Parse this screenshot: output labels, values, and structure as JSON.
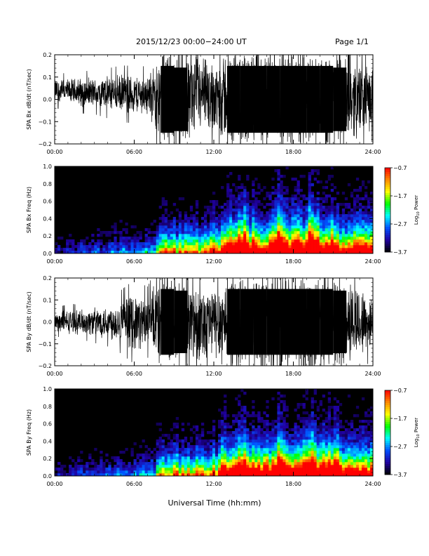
{
  "header": {
    "title": "2015/12/23  00:00−24:00 UT",
    "page": "Page 1/1"
  },
  "xlabel": "Universal Time (hh:mm)",
  "colorbar": {
    "label": "Log10 Power",
    "label_base": "Log",
    "label_sub": "10",
    "label_rest": " Power",
    "ticks": [
      "−0.7",
      "−1.7",
      "−2.7",
      "−3.7"
    ],
    "colors": [
      "#ff0000",
      "#ff8800",
      "#ffff00",
      "#00ff00",
      "#00ffff",
      "#0050ff",
      "#2000a0",
      "#000000"
    ]
  },
  "chart_data": [
    {
      "type": "line",
      "ylabel": "SPA Bx dB/dt (nT/sec)",
      "ylim": [
        -0.2,
        0.2
      ],
      "yticks": [
        "0.2",
        "0.1",
        "0.0",
        "−0.1",
        "−0.2"
      ],
      "xlim": [
        "00:00",
        "24:00"
      ],
      "xticks": [
        "00:00",
        "06:00",
        "12:00",
        "18:00",
        "24:00"
      ],
      "x_hours": [
        0,
        1,
        2,
        3,
        4,
        5,
        6,
        7,
        7.5,
        8,
        9,
        10,
        11,
        12,
        13,
        14,
        15,
        16,
        17,
        18,
        19,
        20,
        21,
        22,
        23,
        24
      ],
      "amplitude": [
        0.05,
        0.05,
        0.06,
        0.06,
        0.07,
        0.08,
        0.08,
        0.08,
        0.12,
        0.2,
        0.2,
        0.18,
        0.16,
        0.15,
        0.2,
        0.2,
        0.2,
        0.2,
        0.2,
        0.2,
        0.2,
        0.2,
        0.2,
        0.18,
        0.15,
        0.12
      ],
      "baseline": 0.04
    },
    {
      "type": "heatmap",
      "ylabel": "SPA Bx Freq (Hz)",
      "ylim": [
        0,
        1.0
      ],
      "yticks": [
        "1.0",
        "0.8",
        "0.6",
        "0.4",
        "0.2",
        "0.0"
      ],
      "xlim": [
        "00:00",
        "24:00"
      ],
      "xticks": [
        "00:00",
        "06:00",
        "12:00",
        "18:00",
        "24:00"
      ],
      "zlim": [
        -3.7,
        -0.7
      ]
    },
    {
      "type": "line",
      "ylabel": "SPA By dB/dt (nT/sec)",
      "ylim": [
        -0.2,
        0.2
      ],
      "yticks": [
        "0.2",
        "0.1",
        "0.0",
        "−0.1",
        "−0.2"
      ],
      "xlim": [
        "00:00",
        "24:00"
      ],
      "xticks": [
        "00:00",
        "06:00",
        "12:00",
        "18:00",
        "24:00"
      ],
      "x_hours": [
        0,
        1,
        2,
        3,
        4,
        5,
        6,
        7,
        7.5,
        8,
        9,
        10,
        11,
        12,
        13,
        14,
        15,
        16,
        17,
        18,
        19,
        20,
        21,
        22,
        23,
        24
      ],
      "amplitude": [
        0.04,
        0.05,
        0.05,
        0.06,
        0.07,
        0.09,
        0.12,
        0.1,
        0.14,
        0.2,
        0.2,
        0.18,
        0.16,
        0.15,
        0.2,
        0.2,
        0.2,
        0.2,
        0.2,
        0.2,
        0.2,
        0.2,
        0.2,
        0.18,
        0.15,
        0.1
      ],
      "baseline": 0.0
    },
    {
      "type": "heatmap",
      "ylabel": "SPA By Freq (Hz)",
      "ylim": [
        0,
        1.0
      ],
      "yticks": [
        "1.0",
        "0.8",
        "0.6",
        "0.4",
        "0.2",
        "0.0"
      ],
      "xlim": [
        "00:00",
        "24:00"
      ],
      "xticks": [
        "00:00",
        "06:00",
        "12:00",
        "18:00",
        "24:00"
      ],
      "zlim": [
        -3.7,
        -0.7
      ]
    }
  ]
}
